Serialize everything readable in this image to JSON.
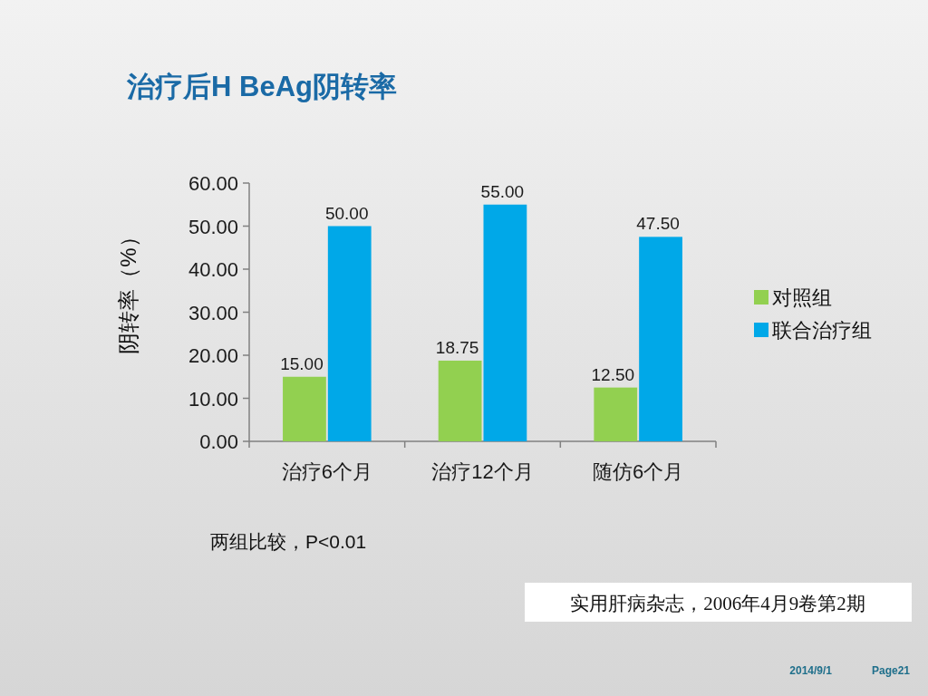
{
  "chart_data": {
    "type": "bar",
    "title": "治疗后H BeAg阴转率",
    "ylabel": "阴转率（%）",
    "categories": [
      "治疗6个月",
      "治疗12个月",
      "随仿6个月"
    ],
    "series": [
      {
        "name": "对照组",
        "color": "#92d050",
        "values": [
          15.0,
          18.75,
          12.5
        ],
        "value_labels": [
          "15.00",
          "18.75",
          "12.50"
        ]
      },
      {
        "name": "联合治疗组",
        "color": "#00a8e8",
        "values": [
          50.0,
          55.0,
          47.5
        ],
        "value_labels": [
          "50.00",
          "55.00",
          "47.50"
        ]
      }
    ],
    "ylim": [
      0,
      60
    ],
    "yticks": [
      {
        "value": 0,
        "label": "0.00"
      },
      {
        "value": 10,
        "label": "10.00"
      },
      {
        "value": 20,
        "label": "20.00"
      },
      {
        "value": 30,
        "label": "30.00"
      },
      {
        "value": 40,
        "label": "40.00"
      },
      {
        "value": 50,
        "label": "50.00"
      },
      {
        "value": 60,
        "label": "60.00"
      }
    ],
    "legend": "right",
    "annotations": [
      "两组比较，P<0.01",
      "实用肝病杂志，2006年4月9卷第2期",
      "2014/9/1",
      "Page21"
    ]
  }
}
